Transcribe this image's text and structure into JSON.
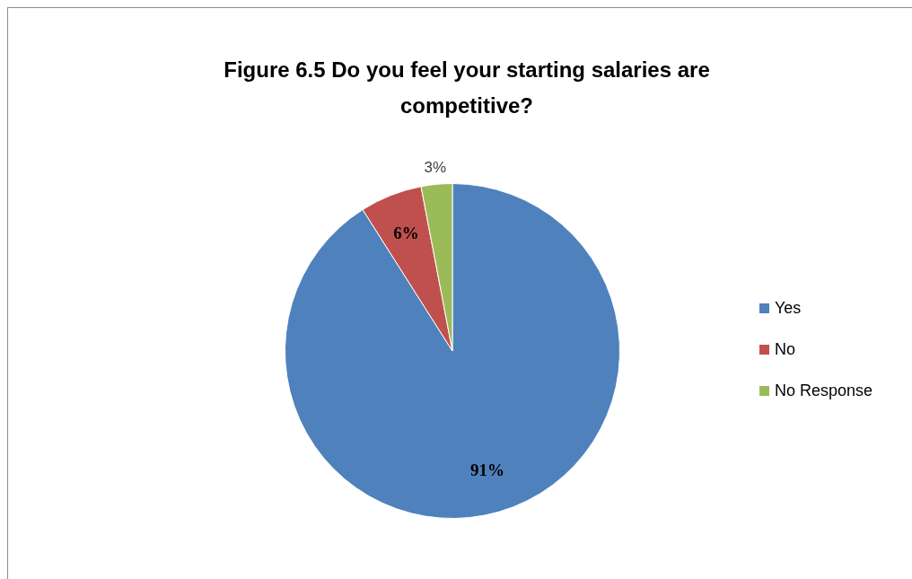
{
  "chart_data": {
    "type": "pie",
    "title": "Figure 6.5  Do you feel your starting salaries are competitive?",
    "categories": [
      "Yes",
      "No",
      "No Response"
    ],
    "values": [
      91,
      6,
      3
    ],
    "colors": [
      "#4f81bd",
      "#c0504d",
      "#9bbb59"
    ],
    "value_labels": [
      "91%",
      "6%",
      "3%"
    ],
    "legend": "right"
  }
}
